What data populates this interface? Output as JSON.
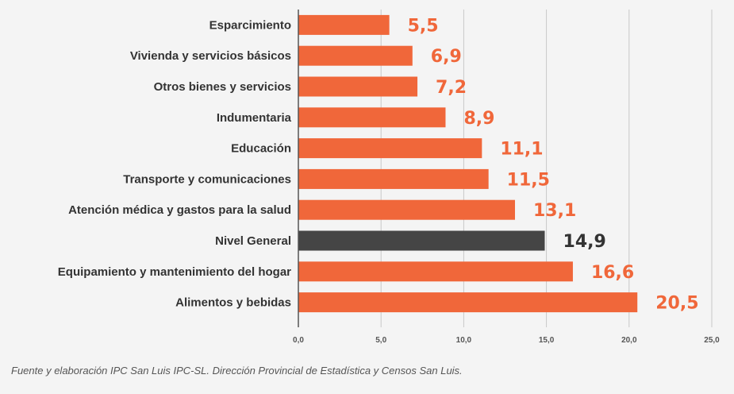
{
  "chart_data": {
    "type": "bar",
    "orientation": "horizontal",
    "categories": [
      "Esparcimiento",
      "Vivienda y servicios básicos",
      "Otros bienes y servicios",
      "Indumentaria",
      "Educación",
      "Transporte y comunicaciones",
      "Atención médica y gastos para la salud",
      "Nivel General",
      "Equipamiento y mantenimiento del hogar",
      "Alimentos y bebidas"
    ],
    "values": [
      5.5,
      6.9,
      7.2,
      8.9,
      11.1,
      11.5,
      13.1,
      14.9,
      16.6,
      20.5
    ],
    "value_labels": [
      "5,5",
      "6,9",
      "7,2",
      "8,9",
      "11,1",
      "11,5",
      "13,1",
      "14,9",
      "16,6",
      "20,5"
    ],
    "xlim": [
      0,
      25
    ],
    "xticks": [
      0,
      5,
      10,
      15,
      20,
      25
    ],
    "xtick_labels": [
      "0,0",
      "5,0",
      "10,0",
      "15,0",
      "20,0",
      "25,0"
    ],
    "grid": true,
    "bar_color": "#f0673a",
    "highlight_category": "Nivel General",
    "highlight_color": "#454545",
    "title": "",
    "xlabel": "",
    "ylabel": ""
  },
  "source_note": "Fuente y elaboración IPC San Luis IPC-SL. Dirección Provincial de Estadística y Censos San Luis."
}
